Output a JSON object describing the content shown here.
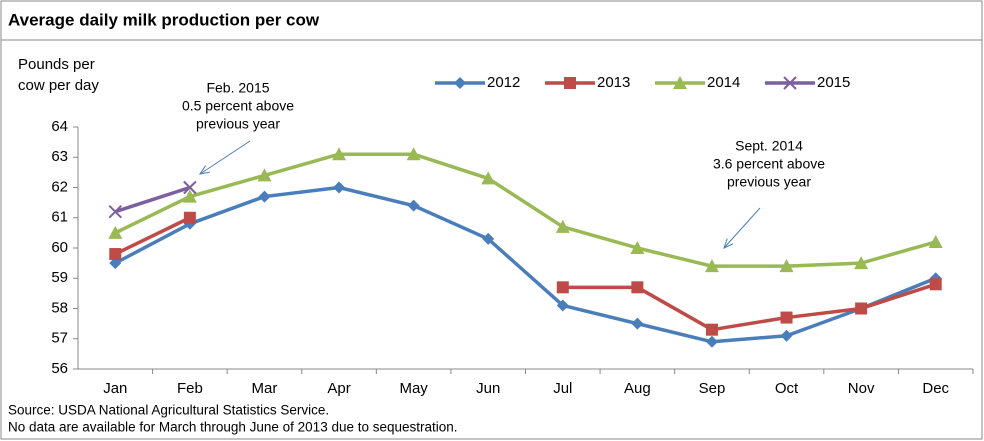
{
  "chart_data": {
    "type": "line",
    "title": "Average daily milk production per cow",
    "y_label": [
      "Pounds per",
      "cow per day"
    ],
    "categories": [
      "Jan",
      "Feb",
      "Mar",
      "Apr",
      "May",
      "Jun",
      "Jul",
      "Aug",
      "Sep",
      "Oct",
      "Nov",
      "Dec"
    ],
    "series": [
      {
        "name": "2012",
        "color": "#4a7ebb",
        "marker": "diamond",
        "values": [
          59.5,
          60.8,
          61.7,
          62.0,
          61.4,
          60.3,
          58.1,
          57.5,
          56.9,
          57.1,
          58.0,
          59.0
        ]
      },
      {
        "name": "2013",
        "color": "#be4b48",
        "marker": "square",
        "values": [
          59.8,
          61.0,
          null,
          null,
          null,
          null,
          58.7,
          58.7,
          57.3,
          57.7,
          58.0,
          58.8
        ]
      },
      {
        "name": "2014",
        "color": "#98b954",
        "marker": "triangle",
        "values": [
          60.5,
          61.7,
          62.4,
          63.1,
          63.1,
          62.3,
          60.7,
          60.0,
          59.4,
          59.4,
          59.5,
          60.2
        ]
      },
      {
        "name": "2015",
        "color": "#7d5fa0",
        "marker": "x",
        "values": [
          61.2,
          62.0,
          null,
          null,
          null,
          null,
          null,
          null,
          null,
          null,
          null,
          null
        ]
      }
    ],
    "ylim": [
      56,
      64
    ],
    "yticks": [
      56,
      57,
      58,
      59,
      60,
      61,
      62,
      63,
      64
    ],
    "grid": false,
    "legend": "top",
    "annotations": [
      {
        "lines": [
          "Feb. 2015",
          "0.5 percent above",
          "previous year"
        ]
      },
      {
        "lines": [
          "Sept. 2014",
          "3.6 percent above",
          "previous year"
        ]
      }
    ],
    "notes": [
      "Source: USDA National Agricultural Statistics Service.",
      "No data are available for March through June of 2013 due to sequestration."
    ]
  }
}
